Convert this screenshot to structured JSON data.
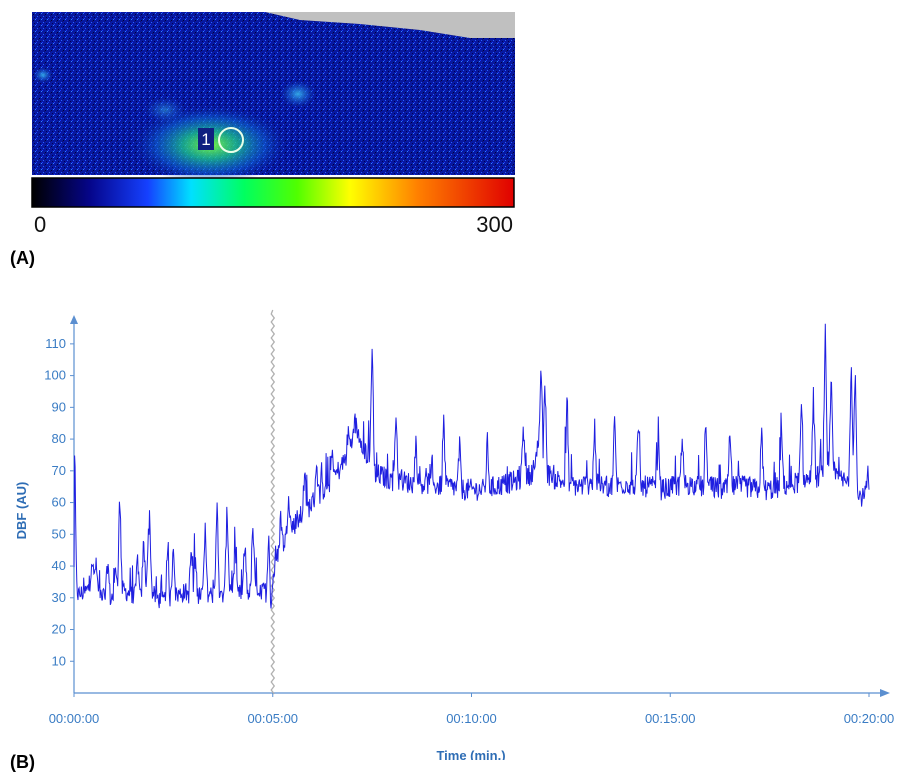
{
  "panel_a": {
    "label": "(A)",
    "roi_label": "1",
    "colorbar": {
      "min_label": "0",
      "max_label": "300"
    },
    "colors": {
      "background": "#061a8c",
      "masked": "#c0c0c0",
      "roi_circle": "#e8ffe8",
      "roi_box": "#102080"
    }
  },
  "panel_b": {
    "label": "(B)"
  },
  "chart_data": {
    "type": "line",
    "title": "",
    "xlabel": "Time (min.)",
    "ylabel": "DBF (AU)",
    "xlim": [
      0,
      20
    ],
    "ylim": [
      0,
      115
    ],
    "x_ticks": [
      0,
      5,
      10,
      15,
      20
    ],
    "x_tick_labels": [
      "00:00:00",
      "00:05:00",
      "00:10:00",
      "00:15:00",
      "00:20:00"
    ],
    "y_ticks": [
      10,
      20,
      30,
      40,
      50,
      60,
      70,
      80,
      90,
      100,
      110
    ],
    "y_tick_labels": [
      "10",
      "20",
      "30",
      "40",
      "50",
      "60",
      "70",
      "80",
      "90",
      "100",
      "110"
    ],
    "grid": false,
    "event_marker_x": 5,
    "series": [
      {
        "color": "#1f1fe0",
        "x": [
          0.0,
          0.02,
          0.05,
          0.1,
          0.3,
          0.5,
          0.7,
          0.9,
          1.1,
          1.2,
          1.3,
          1.5,
          1.7,
          1.8,
          1.85,
          1.9,
          2.0,
          2.2,
          2.4,
          2.6,
          2.8,
          3.0,
          3.1,
          3.3,
          3.5,
          3.7,
          3.8,
          3.9,
          4.1,
          4.3,
          4.5,
          4.6,
          4.7,
          4.8,
          4.9,
          4.95,
          5.0,
          5.05,
          5.1,
          5.2,
          5.3,
          5.4,
          5.6,
          5.8,
          6.0,
          6.2,
          6.4,
          6.6,
          6.8,
          7.0,
          7.1,
          7.2,
          7.3,
          7.4,
          7.5,
          7.6,
          7.8,
          8.0,
          8.2,
          8.5,
          8.8,
          9.0,
          9.2,
          9.5,
          9.8,
          10.0,
          10.3,
          10.6,
          10.9,
          11.2,
          11.5,
          11.7,
          11.8,
          12.0,
          12.2,
          12.4,
          12.7,
          13.0,
          13.3,
          13.6,
          13.9,
          14.2,
          14.5,
          14.8,
          15.1,
          15.4,
          15.7,
          16.0,
          16.3,
          16.6,
          16.9,
          17.2,
          17.5,
          17.8,
          18.1,
          18.4,
          18.7,
          18.9,
          19.1,
          19.3,
          19.5,
          19.7,
          19.85,
          19.95
        ],
        "y": [
          32,
          68,
          33,
          30,
          31,
          34,
          30,
          29,
          30,
          32,
          31,
          30,
          29,
          33,
          40,
          34,
          30,
          28,
          29,
          30,
          31,
          29,
          30,
          31,
          30,
          29,
          31,
          33,
          30,
          31,
          31,
          33,
          30,
          32,
          27,
          23,
          35,
          38,
          41,
          44,
          47,
          50,
          53,
          56,
          59,
          62,
          65,
          68,
          72,
          78,
          82,
          80,
          76,
          73,
          70,
          68,
          67,
          66,
          66,
          65,
          65,
          65,
          64,
          64,
          63,
          63,
          63,
          64,
          65,
          66,
          68,
          74,
          70,
          67,
          66,
          65,
          64,
          65,
          64,
          64,
          65,
          64,
          64,
          63,
          64,
          65,
          64,
          64,
          63,
          64,
          64,
          63,
          63,
          64,
          65,
          66,
          67,
          69,
          68,
          66,
          65,
          64,
          60,
          64
        ],
        "spikes": [
          {
            "x": 0.03,
            "y": 68
          },
          {
            "x": 0.45,
            "y": 42
          },
          {
            "x": 0.55,
            "y": 40
          },
          {
            "x": 0.85,
            "y": 41
          },
          {
            "x": 1.05,
            "y": 40
          },
          {
            "x": 1.15,
            "y": 62
          },
          {
            "x": 1.6,
            "y": 42
          },
          {
            "x": 1.75,
            "y": 47
          },
          {
            "x": 1.9,
            "y": 55
          },
          {
            "x": 2.35,
            "y": 43
          },
          {
            "x": 2.5,
            "y": 47
          },
          {
            "x": 2.95,
            "y": 45
          },
          {
            "x": 3.05,
            "y": 42
          },
          {
            "x": 3.3,
            "y": 50
          },
          {
            "x": 3.6,
            "y": 61
          },
          {
            "x": 3.85,
            "y": 58
          },
          {
            "x": 4.05,
            "y": 44
          },
          {
            "x": 4.3,
            "y": 46
          },
          {
            "x": 4.5,
            "y": 52
          },
          {
            "x": 4.9,
            "y": 51
          },
          {
            "x": 5.2,
            "y": 55
          },
          {
            "x": 5.4,
            "y": 63
          },
          {
            "x": 5.8,
            "y": 68
          },
          {
            "x": 6.1,
            "y": 72
          },
          {
            "x": 6.5,
            "y": 75
          },
          {
            "x": 6.9,
            "y": 81
          },
          {
            "x": 7.05,
            "y": 85
          },
          {
            "x": 7.5,
            "y": 110
          },
          {
            "x": 8.1,
            "y": 88
          },
          {
            "x": 8.6,
            "y": 78
          },
          {
            "x": 9.3,
            "y": 85
          },
          {
            "x": 9.7,
            "y": 77
          },
          {
            "x": 10.4,
            "y": 78
          },
          {
            "x": 11.3,
            "y": 85
          },
          {
            "x": 11.75,
            "y": 104
          },
          {
            "x": 11.85,
            "y": 97
          },
          {
            "x": 12.4,
            "y": 87
          },
          {
            "x": 13.1,
            "y": 83
          },
          {
            "x": 13.6,
            "y": 85
          },
          {
            "x": 14.2,
            "y": 84
          },
          {
            "x": 14.7,
            "y": 80
          },
          {
            "x": 15.3,
            "y": 78
          },
          {
            "x": 15.9,
            "y": 80
          },
          {
            "x": 16.5,
            "y": 80
          },
          {
            "x": 17.3,
            "y": 81
          },
          {
            "x": 17.8,
            "y": 80
          },
          {
            "x": 18.3,
            "y": 88
          },
          {
            "x": 18.6,
            "y": 93
          },
          {
            "x": 18.9,
            "y": 112
          },
          {
            "x": 19.05,
            "y": 97
          },
          {
            "x": 19.55,
            "y": 103
          },
          {
            "x": 19.65,
            "y": 102
          }
        ]
      }
    ]
  }
}
